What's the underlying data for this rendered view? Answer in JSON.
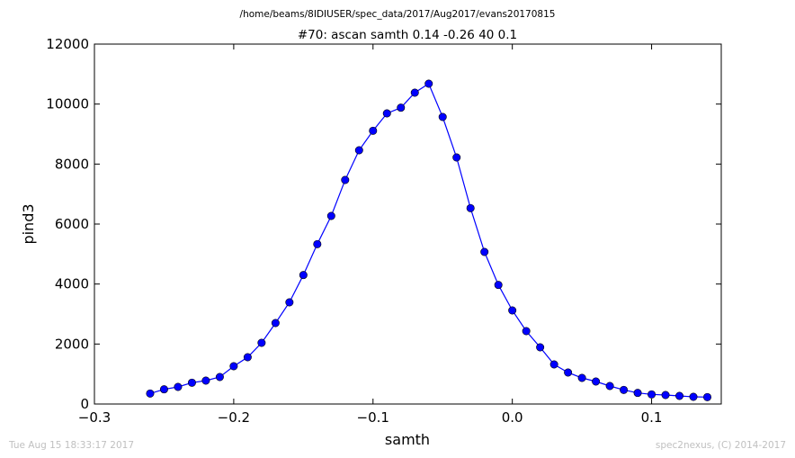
{
  "suptitle": "/home/beams/8IDIUSER/spec_data/2017/Aug2017/evans20170815",
  "footer": {
    "timestamp": "Tue Aug 15 18:33:17 2017",
    "credit": "spec2nexus, (C) 2014-2017"
  },
  "chart_data": {
    "type": "line",
    "title": "#70: ascan  samth 0.14 -0.26  40 0.1",
    "xlabel": "samth",
    "ylabel": "pind3",
    "xlim": [
      -0.3,
      0.15
    ],
    "ylim": [
      0,
      12000
    ],
    "xticks": [
      -0.3,
      -0.2,
      -0.1,
      0.0,
      0.1
    ],
    "xtick_labels": [
      "−0.3",
      "−0.2",
      "−0.1",
      "0.0",
      "0.1"
    ],
    "yticks": [
      0,
      2000,
      4000,
      6000,
      8000,
      10000,
      12000
    ],
    "ytick_labels": [
      "0",
      "2000",
      "4000",
      "6000",
      "8000",
      "10000",
      "12000"
    ],
    "grid": false,
    "marker": "circle",
    "color": "#0000ff",
    "series": [
      {
        "x": [
          -0.26,
          -0.25,
          -0.24,
          -0.23,
          -0.22,
          -0.21,
          -0.2,
          -0.19,
          -0.18,
          -0.17,
          -0.16,
          -0.15,
          -0.14,
          -0.13,
          -0.12,
          -0.11,
          -0.1,
          -0.09,
          -0.08,
          -0.07,
          -0.06,
          -0.05,
          -0.04,
          -0.03,
          -0.02,
          -0.01,
          0.0,
          0.01,
          0.02,
          0.03,
          0.04,
          0.05,
          0.06,
          0.07,
          0.08,
          0.09,
          0.1,
          0.11,
          0.12,
          0.13,
          0.14
        ],
        "y": [
          350,
          490,
          570,
          710,
          780,
          900,
          1260,
          1560,
          2040,
          2700,
          3390,
          4300,
          5330,
          6270,
          7470,
          8460,
          9110,
          9690,
          9880,
          10380,
          10680,
          9570,
          8220,
          6530,
          5070,
          3970,
          3120,
          2430,
          1890,
          1320,
          1050,
          870,
          750,
          600,
          470,
          370,
          320,
          300,
          270,
          240,
          230
        ]
      }
    ]
  }
}
